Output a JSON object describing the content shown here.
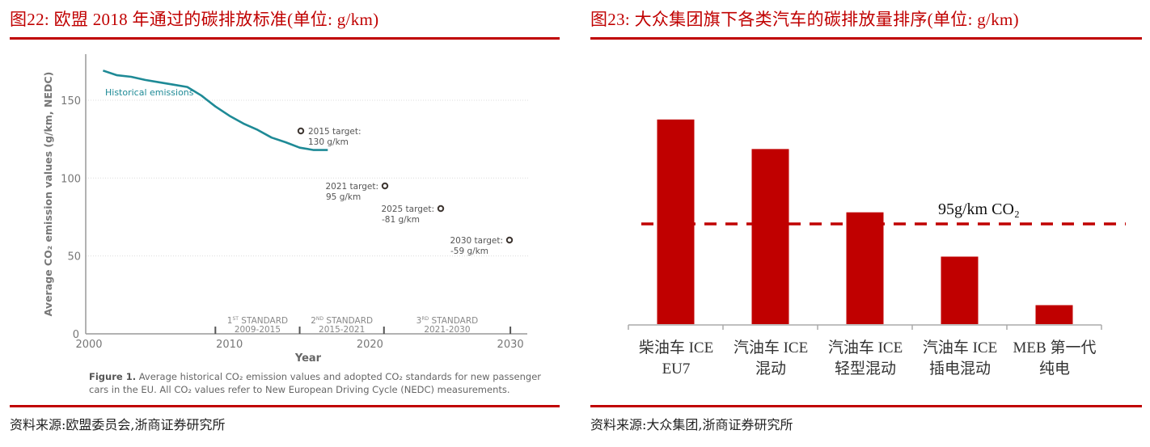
{
  "left_panel": {
    "title": "图22:   欧盟 2018 年通过的碳排放标准(单位:  g/km)",
    "source": "资料来源:欧盟委员会,浙商证券研究所",
    "caption_bold": "Figure 1.",
    "caption_text": " Average historical CO₂ emission values and adopted CO₂ standards for new passenger cars in the EU. All CO₂ values refer to New European Driving Cycle (NEDC) measurements."
  },
  "right_panel": {
    "title": "图23:   大众集团旗下各类汽车的碳排放量排序(单位:  g/km)",
    "source": "资料来源:大众集团,浙商证券研究所",
    "reference_label": "95g/km CO₂",
    "categories": [
      {
        "line1": "柴油车 ICE",
        "line2": "EU7"
      },
      {
        "line1": "汽油车 ICE",
        "line2": "混动"
      },
      {
        "line1": "汽油车 ICE",
        "line2": "轻型混动"
      },
      {
        "line1": "汽油车 ICE",
        "line2": "插电混动"
      },
      {
        "line1": "MEB 第一代",
        "line2": "纯电"
      }
    ]
  },
  "colors": {
    "title_red": "#c00000",
    "bar_red": "#c00000",
    "line_teal": "#1e8a96",
    "target_marker": "#3d3530",
    "axis_gray": "#999999"
  },
  "chart_data": [
    {
      "type": "line",
      "title": "Average historical CO₂ emission values and adopted CO₂ standards for new passenger cars in the EU",
      "xlabel": "Year",
      "ylabel": "Average CO₂ emission values (g/km, NEDC)",
      "xlim": [
        2000,
        2030
      ],
      "ylim": [
        0,
        170
      ],
      "xticks": [
        2000,
        2010,
        2020,
        2030
      ],
      "yticks": [
        0,
        50,
        100,
        150
      ],
      "grid": "horizontal dotted at 50, 100, 150",
      "series": [
        {
          "name": "Historical emissions",
          "x": [
            2001,
            2002,
            2003,
            2004,
            2005,
            2006,
            2007,
            2008,
            2009,
            2010,
            2011,
            2012,
            2013,
            2014,
            2015,
            2016,
            2017
          ],
          "y": [
            169,
            166,
            165,
            163,
            161.5,
            160,
            158.5,
            153,
            146,
            140,
            135,
            131,
            126,
            123,
            119.5,
            118,
            118
          ]
        }
      ],
      "annotations": [
        {
          "label": "2015 target:",
          "value_label": "130 g/km",
          "x": 2015,
          "y": 130
        },
        {
          "label": "2021 target:",
          "value_label": "95 g/km",
          "x": 2021,
          "y": 95
        },
        {
          "label": "2025 target:",
          "value_label": "-81 g/km",
          "x": 2025,
          "y": 81
        },
        {
          "label": "2030 target:",
          "value_label": "-59 g/km",
          "x": 2030,
          "y": 59
        }
      ],
      "standards": [
        {
          "name": "1ST STANDARD",
          "sup": "ST",
          "ordinal": "1",
          "period": "2009-2015"
        },
        {
          "name": "2ND STANDARD",
          "sup": "ND",
          "ordinal": "2",
          "period": "2015-2021"
        },
        {
          "name": "3RD STANDARD",
          "sup": "RD",
          "ordinal": "3",
          "period": "2021-2030"
        }
      ],
      "standard_ticks": [
        2009,
        2015,
        2021,
        2030
      ]
    },
    {
      "type": "bar",
      "title": "大众集团旗下各类汽车的碳排放量排序(单位: g/km)",
      "categories": [
        "柴油车 ICE EU7",
        "汽油车 ICE 混动",
        "汽油车 ICE 轻型混动",
        "汽油车 ICE 插电混动",
        "MEB 第一代 纯电"
      ],
      "values": [
        194,
        166,
        106,
        64,
        18
      ],
      "reference_line": {
        "value": 95,
        "label": "95g/km CO₂",
        "style": "dashed"
      },
      "xlabel": "",
      "ylabel": "",
      "ylim": [
        0,
        200
      ],
      "grid": false,
      "note": "No y-axis shown; values estimated relative to the 95 g/km reference line"
    }
  ]
}
